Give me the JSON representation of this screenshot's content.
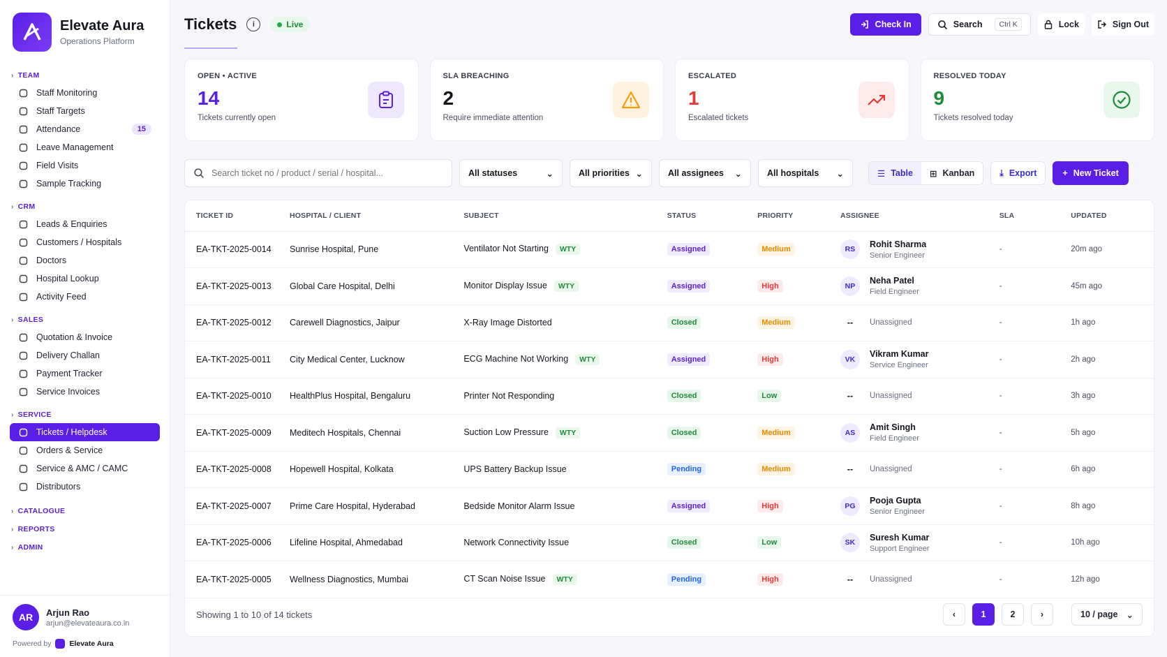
{
  "brand": {
    "name": "Elevate Aura",
    "subtitle": "Operations Platform"
  },
  "sidebar": {
    "sections": [
      {
        "label": "TEAM",
        "items": [
          {
            "label": "Staff Monitoring",
            "icon": "users-icon"
          },
          {
            "label": "Staff Targets",
            "icon": "target-icon"
          },
          {
            "label": "Attendance",
            "icon": "calendar-icon",
            "badge": "15"
          },
          {
            "label": "Leave Management",
            "icon": "calendar-check-icon"
          },
          {
            "label": "Field Visits",
            "icon": "map-pin-icon"
          },
          {
            "label": "Sample Tracking",
            "icon": "flask-icon"
          }
        ]
      },
      {
        "label": "CRM",
        "items": [
          {
            "label": "Leads & Enquiries",
            "icon": "user-plus-icon"
          },
          {
            "label": "Customers / Hospitals",
            "icon": "users-icon"
          },
          {
            "label": "Doctors",
            "icon": "user-icon"
          },
          {
            "label": "Hospital Lookup",
            "icon": "search-icon"
          },
          {
            "label": "Activity Feed",
            "icon": "activity-icon"
          }
        ]
      },
      {
        "label": "SALES",
        "items": [
          {
            "label": "Quotation & Invoice",
            "icon": "file-icon"
          },
          {
            "label": "Delivery Challan",
            "icon": "truck-icon"
          },
          {
            "label": "Payment Tracker",
            "icon": "card-icon"
          },
          {
            "label": "Service Invoices",
            "icon": "receipt-icon"
          }
        ]
      },
      {
        "label": "SERVICE",
        "items": [
          {
            "label": "Tickets / Helpdesk",
            "icon": "ticket-icon",
            "active": true
          },
          {
            "label": "Orders & Service",
            "icon": "box-icon"
          },
          {
            "label": "Service & AMC / CAMC",
            "icon": "shield-icon"
          },
          {
            "label": "Distributors",
            "icon": "building-icon"
          }
        ]
      }
    ],
    "collapsed": [
      "CATALOGUE",
      "REPORTS",
      "ADMIN"
    ],
    "user": {
      "initials": "AR",
      "name": "Arjun Rao",
      "email": "arjun@elevateaura.co.in"
    },
    "powered_by": "Powered by",
    "powered_brand": "Elevate Aura"
  },
  "header": {
    "title": "Tickets",
    "live_label": "Live",
    "check_in": "Check In",
    "search": "Search",
    "shortcut": "Ctrl K",
    "lock": "Lock",
    "sign_out": "Sign Out"
  },
  "stats": [
    {
      "label": "OPEN • ACTIVE",
      "value": "14",
      "sub": "Tickets currently open",
      "color": "#5b1ee6",
      "icon": "clipboard-icon",
      "bg": "#ede7ff"
    },
    {
      "label": "SLA BREACHING",
      "value": "2",
      "sub": "Require immediate attention",
      "color": "#15171f",
      "icon": "warning-icon",
      "bg": "#fff3e0"
    },
    {
      "label": "ESCALATED",
      "value": "1",
      "sub": "Escalated tickets",
      "color": "#e53935",
      "icon": "trend-up-icon",
      "bg": "#fdebec"
    },
    {
      "label": "RESOLVED TODAY",
      "value": "9",
      "sub": "Tickets resolved today",
      "color": "#1f8a3a",
      "icon": "check-circle-icon",
      "bg": "#e8f7ec"
    }
  ],
  "filters": {
    "search_placeholder": "Search ticket no / product / serial / hospital...",
    "status": "All statuses",
    "priority": "All priorities",
    "assignee": "All assignees",
    "hospital": "All hospitals",
    "view_table": "Table",
    "view_kanban": "Kanban",
    "export": "Export",
    "new_ticket": "New Ticket"
  },
  "table": {
    "columns": [
      "TICKET ID",
      "HOSPITAL / CLIENT",
      "SUBJECT",
      "STATUS",
      "PRIORITY",
      "ASSIGNEE",
      "SLA",
      "UPDATED"
    ],
    "rows": [
      {
        "id": "EA-TKT-2025-0014",
        "client": "Sunrise Hospital, Pune",
        "subject": "Ventilator Not Starting",
        "wty": "WTY",
        "status": "Assigned",
        "priority": "Medium",
        "initials": "RS",
        "assignee": "Rohit Sharma",
        "role": "Senior Engineer",
        "sla": "-",
        "updated": "20m ago"
      },
      {
        "id": "EA-TKT-2025-0013",
        "client": "Global Care Hospital, Delhi",
        "subject": "Monitor Display Issue",
        "wty": "WTY",
        "status": "Assigned",
        "priority": "High",
        "initials": "NP",
        "assignee": "Neha Patel",
        "role": "Field Engineer",
        "sla": "-",
        "updated": "45m ago"
      },
      {
        "id": "EA-TKT-2025-0012",
        "client": "Carewell Diagnostics, Jaipur",
        "subject": "X-Ray Image Distorted",
        "wty": "",
        "status": "Closed",
        "priority": "Medium",
        "initials": "--",
        "assignee": "Unassigned",
        "role": "",
        "sla": "-",
        "updated": "1h ago"
      },
      {
        "id": "EA-TKT-2025-0011",
        "client": "City Medical Center, Lucknow",
        "subject": "ECG Machine Not Working",
        "wty": "WTY",
        "status": "Assigned",
        "priority": "High",
        "initials": "VK",
        "assignee": "Vikram Kumar",
        "role": "Service Engineer",
        "sla": "-",
        "updated": "2h ago"
      },
      {
        "id": "EA-TKT-2025-0010",
        "client": "HealthPlus Hospital, Bengaluru",
        "subject": "Printer Not Responding",
        "wty": "",
        "status": "Closed",
        "priority": "Low",
        "initials": "--",
        "assignee": "Unassigned",
        "role": "",
        "sla": "-",
        "updated": "3h ago"
      },
      {
        "id": "EA-TKT-2025-0009",
        "client": "Meditech Hospitals, Chennai",
        "subject": "Suction Low Pressure",
        "wty": "WTY",
        "status": "Closed",
        "priority": "Medium",
        "initials": "AS",
        "assignee": "Amit Singh",
        "role": "Field Engineer",
        "sla": "-",
        "updated": "5h ago"
      },
      {
        "id": "EA-TKT-2025-0008",
        "client": "Hopewell Hospital, Kolkata",
        "subject": "UPS Battery Backup Issue",
        "wty": "",
        "status": "Pending",
        "priority": "Medium",
        "initials": "--",
        "assignee": "Unassigned",
        "role": "",
        "sla": "-",
        "updated": "6h ago"
      },
      {
        "id": "EA-TKT-2025-0007",
        "client": "Prime Care Hospital, Hyderabad",
        "subject": "Bedside Monitor Alarm Issue",
        "wty": "",
        "status": "Assigned",
        "priority": "High",
        "initials": "PG",
        "assignee": "Pooja Gupta",
        "role": "Senior Engineer",
        "sla": "-",
        "updated": "8h ago"
      },
      {
        "id": "EA-TKT-2025-0006",
        "client": "Lifeline Hospital, Ahmedabad",
        "subject": "Network Connectivity Issue",
        "wty": "",
        "status": "Closed",
        "priority": "Low",
        "initials": "SK",
        "assignee": "Suresh Kumar",
        "role": "Support Engineer",
        "sla": "-",
        "updated": "10h ago"
      },
      {
        "id": "EA-TKT-2025-0005",
        "client": "Wellness Diagnostics, Mumbai",
        "subject": "CT Scan Noise Issue",
        "wty": "WTY",
        "status": "Pending",
        "priority": "High",
        "initials": "--",
        "assignee": "Unassigned",
        "role": "",
        "sla": "-",
        "updated": "12h ago"
      }
    ]
  },
  "pagination": {
    "showing": "Showing 1 to 10 of 14 tickets",
    "pages": [
      "1",
      "2"
    ],
    "current": "1",
    "per_page": "10 / page"
  },
  "colors": {
    "accent": "#5b1ee6",
    "status": {
      "Assigned": [
        "#f0ebff",
        "#5b21d6"
      ],
      "Closed": [
        "#e8f7ec",
        "#1f8a3a"
      ],
      "Pending": [
        "#e6f0ff",
        "#2563eb"
      ]
    },
    "priority": {
      "Medium": [
        "#fff4e3",
        "#e68a00"
      ],
      "High": [
        "#fdebec",
        "#e53935"
      ],
      "Low": [
        "#e8f7ec",
        "#1f8a3a"
      ]
    }
  }
}
